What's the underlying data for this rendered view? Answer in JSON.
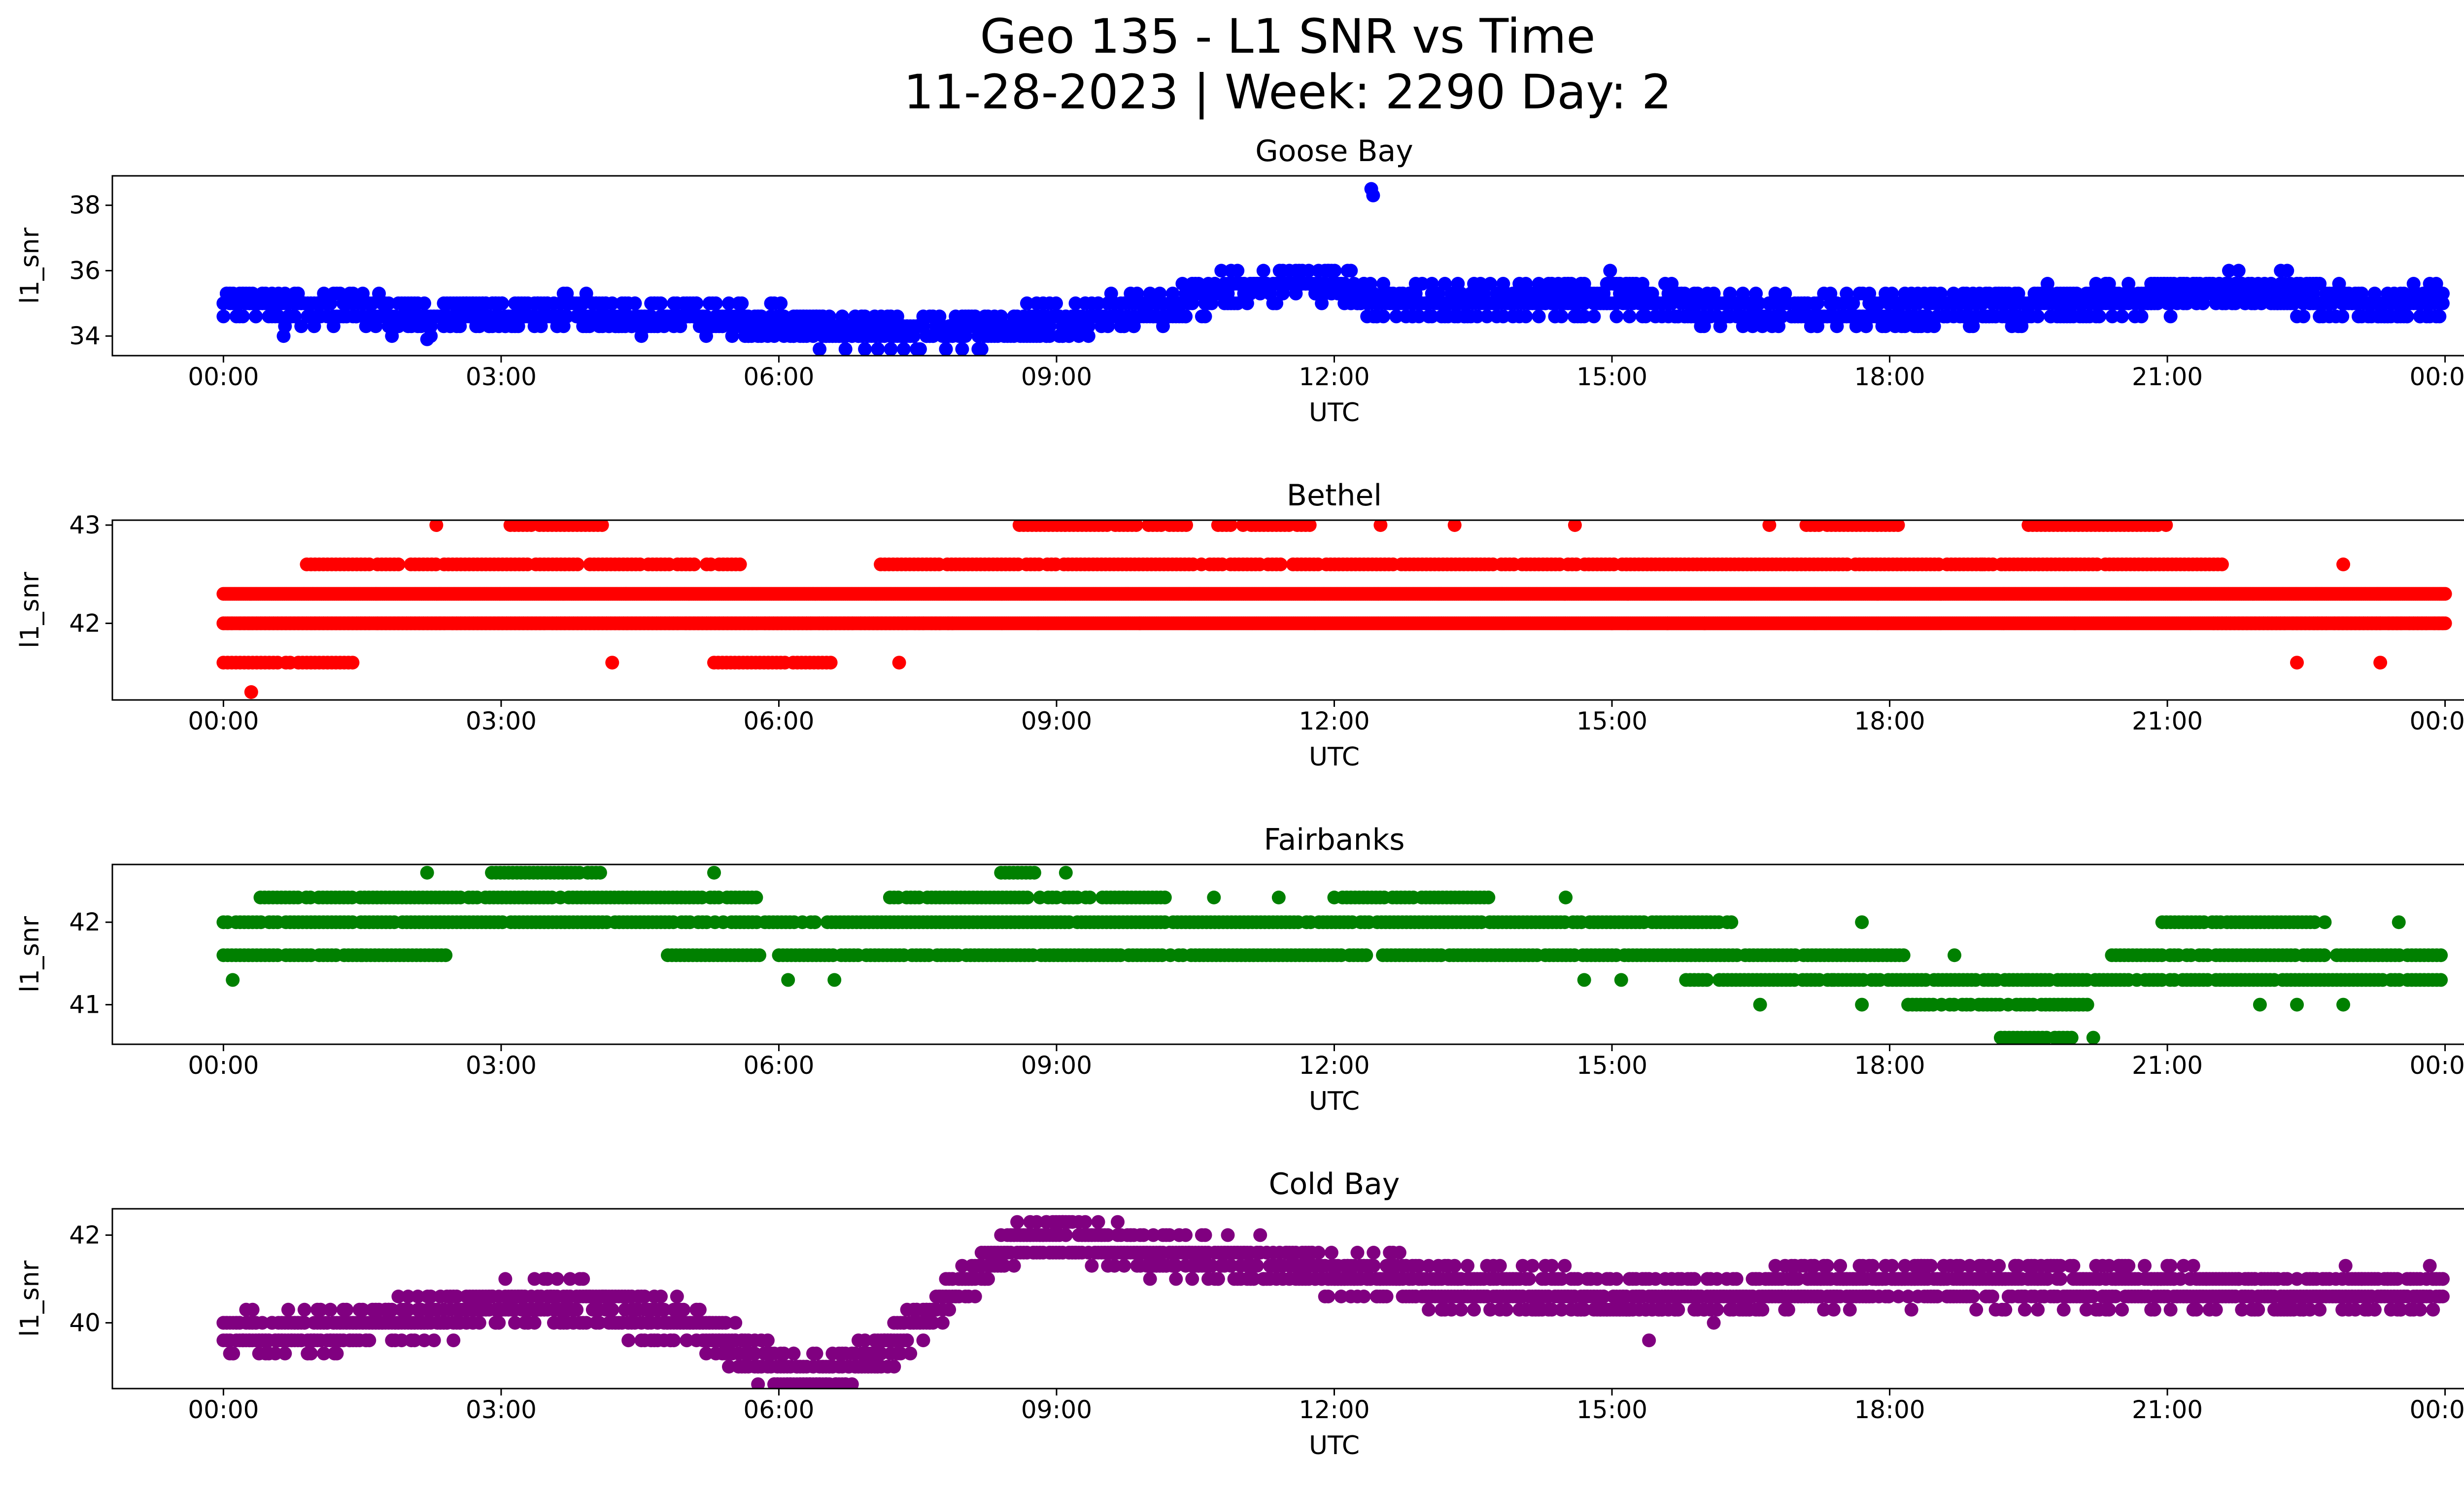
{
  "figure": {
    "title_line1": "Geo 135 - L1 SNR vs Time",
    "title_line2": "11-28-2023 | Week: 2290 Day: 2"
  },
  "chart_data": [
    {
      "type": "scatter",
      "title": "Goose Bay",
      "xlabel": "UTC",
      "ylabel": "l1_snr",
      "color": "#0000ff",
      "xticks": [
        "00:00",
        "03:00",
        "06:00",
        "09:00",
        "12:00",
        "15:00",
        "18:00",
        "21:00",
        "00:00"
      ],
      "xlim_hours": [
        -1.2,
        25.2
      ],
      "ylim": [
        33.4,
        38.9
      ],
      "yticks": [
        34,
        36,
        38
      ],
      "levels": [
        33.6,
        34.0,
        34.3,
        34.6,
        35.0,
        35.3,
        35.6,
        36.0,
        36.3
      ],
      "trend": [
        [
          0,
          35.0
        ],
        [
          1,
          34.9
        ],
        [
          2,
          34.6
        ],
        [
          3,
          34.7
        ],
        [
          4,
          34.7
        ],
        [
          5,
          34.6
        ],
        [
          6,
          34.4
        ],
        [
          7,
          34.1
        ],
        [
          8,
          34.2
        ],
        [
          9,
          34.5
        ],
        [
          10,
          34.8
        ],
        [
          11,
          35.5
        ],
        [
          12,
          35.7
        ],
        [
          12.5,
          35.0
        ],
        [
          13,
          35.0
        ],
        [
          14,
          35.1
        ],
        [
          15,
          35.3
        ],
        [
          16,
          34.8
        ],
        [
          17,
          34.7
        ],
        [
          18,
          34.8
        ],
        [
          19,
          34.9
        ],
        [
          20,
          35.0
        ],
        [
          21,
          35.3
        ],
        [
          22,
          35.4
        ],
        [
          23,
          35.0
        ],
        [
          24,
          35.0
        ]
      ],
      "spread": 0.7,
      "outliers": [
        [
          12.4,
          38.5
        ],
        [
          12.42,
          38.3
        ],
        [
          0.65,
          34.0
        ],
        [
          2.2,
          33.9
        ]
      ]
    },
    {
      "type": "scatter",
      "title": "Bethel",
      "xlabel": "UTC",
      "ylabel": "l1_snr",
      "color": "#ff0000",
      "xticks": [
        "00:00",
        "03:00",
        "06:00",
        "09:00",
        "12:00",
        "15:00",
        "18:00",
        "21:00",
        "00:00"
      ],
      "xlim_hours": [
        -1.2,
        25.2
      ],
      "ylim": [
        41.22,
        43.05
      ],
      "yticks": [
        42,
        43
      ],
      "base_levels": [
        42.0,
        42.3
      ],
      "bands": [
        {
          "y": 42.6,
          "segments": [
            [
              0.9,
              5.6
            ],
            [
              7.1,
              21.6
            ]
          ]
        },
        {
          "y": 42.0,
          "segments": [
            [
              0,
              7.9
            ],
            [
              21.5,
              24
            ]
          ]
        },
        {
          "y": 41.6,
          "segments": [
            [
              0,
              1.4
            ],
            [
              5.3,
              6.6
            ]
          ]
        },
        {
          "y": 43.0,
          "segments": [
            [
              3.1,
              4.1
            ],
            [
              8.6,
              10.4
            ],
            [
              10.7,
              11.8
            ],
            [
              17.1,
              18.1
            ],
            [
              19.5,
              21.0
            ]
          ]
        }
      ],
      "isolated": [
        [
          0.3,
          41.3
        ],
        [
          2.3,
          43.0
        ],
        [
          4.2,
          41.6
        ],
        [
          7.3,
          41.6
        ],
        [
          8.8,
          42.0
        ],
        [
          9.9,
          42.0
        ],
        [
          12.5,
          43.0
        ],
        [
          13.3,
          43.0
        ],
        [
          14.6,
          43.0
        ],
        [
          15.0,
          42.0
        ],
        [
          15.6,
          42.0
        ],
        [
          16.0,
          42.0
        ],
        [
          16.7,
          43.0
        ],
        [
          19.0,
          42.6
        ],
        [
          20.0,
          42.0
        ],
        [
          22.4,
          41.6
        ],
        [
          22.9,
          42.6
        ],
        [
          23.3,
          41.6
        ]
      ]
    },
    {
      "type": "scatter",
      "title": "Fairbanks",
      "xlabel": "UTC",
      "ylabel": "l1_snr",
      "color": "#008000",
      "xticks": [
        "00:00",
        "03:00",
        "06:00",
        "09:00",
        "12:00",
        "15:00",
        "18:00",
        "21:00",
        "00:00"
      ],
      "xlim_hours": [
        -1.2,
        25.2
      ],
      "ylim": [
        40.52,
        42.7
      ],
      "yticks": [
        41,
        42
      ],
      "bands": [
        {
          "y": 42.0,
          "segments": [
            [
              0,
              16.3
            ],
            [
              20.9,
              21.6
            ],
            [
              21.6,
              22.6
            ]
          ]
        },
        {
          "y": 41.6,
          "segments": [
            [
              0,
              1.5
            ],
            [
              1.5,
              2.4
            ],
            [
              4.8,
              5.8
            ],
            [
              6.0,
              18.2
            ],
            [
              20.4,
              24
            ]
          ]
        },
        {
          "y": 42.3,
          "segments": [
            [
              0.4,
              5.8
            ],
            [
              7.2,
              10.2
            ],
            [
              12.0,
              13.7
            ]
          ]
        },
        {
          "y": 41.3,
          "segments": [
            [
              15.8,
              17.4
            ],
            [
              17.4,
              19.5
            ],
            [
              19.5,
              24
            ]
          ]
        },
        {
          "y": 42.6,
          "segments": [
            [
              2.9,
              4.1
            ],
            [
              8.4,
              8.8
            ]
          ]
        },
        {
          "y": 41.0,
          "segments": [
            [
              18.2,
              20.2
            ]
          ]
        },
        {
          "y": 40.6,
          "segments": [
            [
              19.2,
              20.0
            ]
          ]
        }
      ],
      "isolated": [
        [
          0.1,
          41.3
        ],
        [
          2.2,
          42.6
        ],
        [
          5.3,
          42.6
        ],
        [
          6.1,
          41.3
        ],
        [
          6.6,
          41.3
        ],
        [
          9.1,
          42.6
        ],
        [
          10.7,
          42.3
        ],
        [
          11.4,
          42.3
        ],
        [
          14.5,
          42.3
        ],
        [
          14.7,
          41.3
        ],
        [
          15.1,
          41.3
        ],
        [
          16.6,
          41.0
        ],
        [
          17.7,
          42.0
        ],
        [
          17.7,
          41.0
        ],
        [
          18.7,
          41.6
        ],
        [
          20.2,
          40.6
        ],
        [
          22.0,
          41.0
        ],
        [
          22.4,
          41.0
        ],
        [
          22.9,
          41.0
        ],
        [
          22.7,
          42.0
        ],
        [
          23.5,
          42.0
        ]
      ]
    },
    {
      "type": "scatter",
      "title": "Cold Bay",
      "xlabel": "UTC",
      "ylabel": "l1_snr",
      "color": "#800080",
      "xticks": [
        "00:00",
        "03:00",
        "06:00",
        "09:00",
        "12:00",
        "15:00",
        "18:00",
        "21:00",
        "00:00"
      ],
      "xlim_hours": [
        -1.2,
        25.2
      ],
      "ylim": [
        38.5,
        42.6
      ],
      "yticks": [
        40,
        42
      ],
      "levels": [
        38.6,
        39.0,
        39.3,
        39.6,
        40.0,
        40.3,
        40.6,
        41.0,
        41.3,
        41.6,
        42.0,
        42.3
      ],
      "trend": [
        [
          0,
          39.8
        ],
        [
          1,
          39.8
        ],
        [
          2,
          40.1
        ],
        [
          3,
          40.4
        ],
        [
          4,
          40.4
        ],
        [
          5,
          40.0
        ],
        [
          5.5,
          39.5
        ],
        [
          6,
          38.9
        ],
        [
          6.5,
          38.8
        ],
        [
          7,
          39.1
        ],
        [
          7.5,
          40.0
        ],
        [
          8,
          41.0
        ],
        [
          8.5,
          41.8
        ],
        [
          9,
          42.0
        ],
        [
          9.5,
          41.8
        ],
        [
          10,
          41.6
        ],
        [
          11,
          41.4
        ],
        [
          12,
          41.2
        ],
        [
          12.7,
          41.0
        ],
        [
          13,
          40.8
        ],
        [
          14,
          40.8
        ],
        [
          15,
          40.6
        ],
        [
          16,
          40.6
        ],
        [
          17,
          40.8
        ],
        [
          18,
          40.9
        ],
        [
          19,
          40.9
        ],
        [
          20,
          40.9
        ],
        [
          21,
          40.8
        ],
        [
          22,
          40.6
        ],
        [
          23,
          40.7
        ],
        [
          24,
          40.8
        ]
      ],
      "spread": 0.65,
      "outliers": [
        [
          1.2,
          39.3
        ],
        [
          3.5,
          41.0
        ],
        [
          15.4,
          39.6
        ]
      ]
    }
  ]
}
